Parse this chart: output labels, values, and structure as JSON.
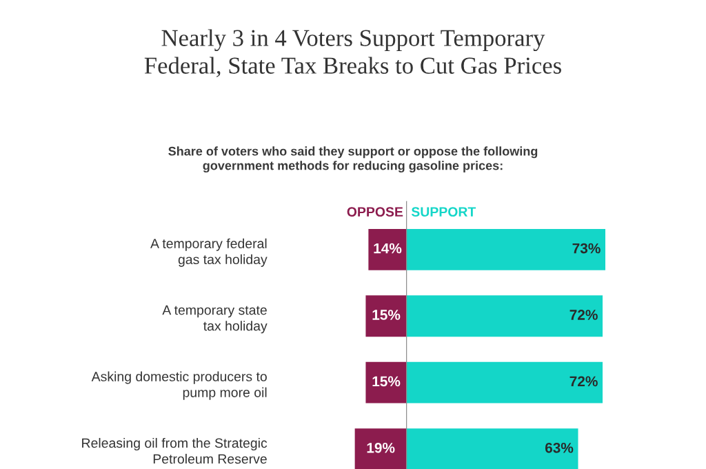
{
  "chart_data": [
    {
      "type": "bar",
      "orientation": "horizontal",
      "title": "Nearly 3 in 4 Voters Support Temporary\nFederal, State Tax Breaks to Cut Gas Prices",
      "subtitle": "Share of voters who said they support or oppose the following\ngovernment methods for reducing gasoline prices:",
      "categories": [
        "A temporary federal\ngas tax holiday",
        "A temporary state\ntax holiday",
        "Asking domestic producers to\npump more oil",
        "Releasing oil from the Strategic\nPetroleum Reserve"
      ],
      "series": [
        {
          "name": "OPPOSE",
          "color": "#8c1c4e",
          "values": [
            14,
            15,
            15,
            19
          ],
          "value_labels": [
            "14%",
            "15%",
            "15%",
            "19%"
          ]
        }
      ],
      "tick_labels": "y",
      "grid": false
    },
    {
      "type": "bar",
      "orientation": "horizontal",
      "categories": [
        null,
        null,
        null,
        null
      ],
      "series": [
        {
          "name": "SUPPORT",
          "color": "#14d6c8",
          "values": [
            73,
            72,
            72,
            63
          ],
          "value_labels": [
            "73%",
            "72%",
            "72%",
            "63%"
          ]
        }
      ],
      "tick_labels": false,
      "grid": false
    }
  ]
}
